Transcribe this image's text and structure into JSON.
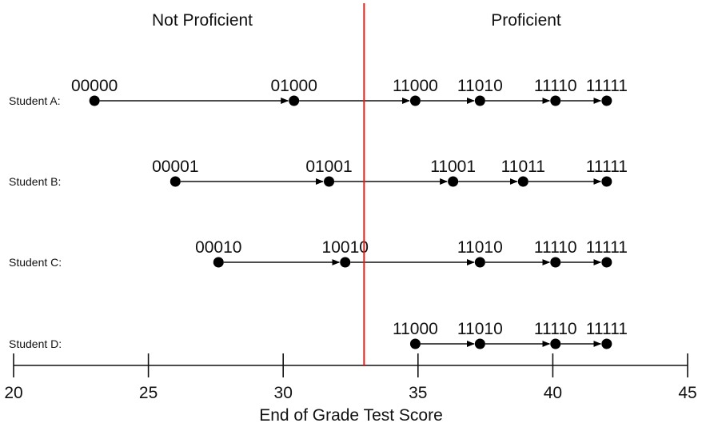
{
  "regions": {
    "left": "Not Proficient",
    "right": "Proficient"
  },
  "threshold": 33,
  "colors": {
    "threshold_line": "#e0201b",
    "ink": "#000000"
  },
  "axis": {
    "min": 20,
    "max": 45,
    "ticks": [
      20,
      25,
      30,
      35,
      40,
      45
    ],
    "title": "End of Grade Test Score"
  },
  "students": [
    {
      "label": "Student A:",
      "points": [
        {
          "score": 23.0,
          "code": "00000"
        },
        {
          "score": 30.4,
          "code": "01000"
        },
        {
          "score": 34.9,
          "code": "11000"
        },
        {
          "score": 37.3,
          "code": "11010"
        },
        {
          "score": 40.1,
          "code": "11110"
        },
        {
          "score": 42.0,
          "code": "11111"
        }
      ]
    },
    {
      "label": "Student B:",
      "points": [
        {
          "score": 26.0,
          "code": "00001"
        },
        {
          "score": 31.7,
          "code": "01001"
        },
        {
          "score": 36.3,
          "code": "11001"
        },
        {
          "score": 38.9,
          "code": "11011"
        },
        {
          "score": 42.0,
          "code": "11111"
        }
      ]
    },
    {
      "label": "Student C:",
      "points": [
        {
          "score": 27.6,
          "code": "00010"
        },
        {
          "score": 32.3,
          "code": "10010"
        },
        {
          "score": 37.3,
          "code": "11010"
        },
        {
          "score": 40.1,
          "code": "11110"
        },
        {
          "score": 42.0,
          "code": "11111"
        }
      ]
    },
    {
      "label": "Student D:",
      "points": [
        {
          "score": 34.9,
          "code": "11000"
        },
        {
          "score": 37.3,
          "code": "11010"
        },
        {
          "score": 40.1,
          "code": "11110"
        },
        {
          "score": 42.0,
          "code": "11111"
        }
      ]
    }
  ]
}
